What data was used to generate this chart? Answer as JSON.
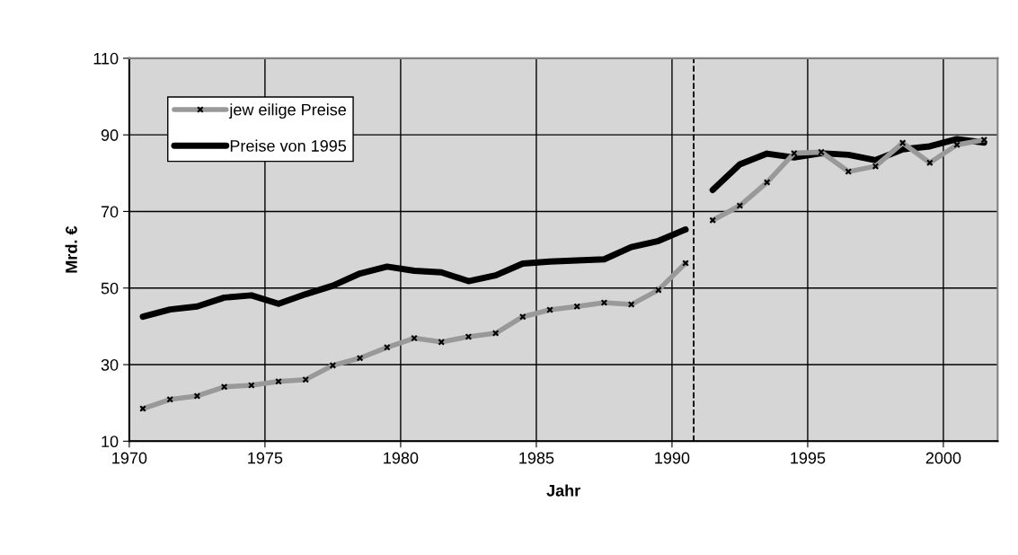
{
  "chart_data": {
    "type": "line",
    "xlabel": "Jahr",
    "ylabel": "Mrd. €",
    "xlim": [
      1970,
      2002
    ],
    "xticks": [
      1970,
      1975,
      1980,
      1985,
      1990,
      1995,
      2000
    ],
    "ylim": [
      10,
      110
    ],
    "yticks": [
      10,
      30,
      50,
      70,
      90,
      110
    ],
    "grid": true,
    "legend": "top left",
    "series": [
      {
        "name": "jew eilige Preise",
        "color": "#999999",
        "marker": "cross",
        "x": [
          1970.5,
          1971.5,
          1972.5,
          1973.5,
          1974.5,
          1975.5,
          1976.5,
          1977.5,
          1978.5,
          1979.5,
          1980.5,
          1981.5,
          1982.5,
          1983.5,
          1984.5,
          1985.5,
          1986.5,
          1987.5,
          1988.5,
          1989.5,
          1990.5,
          1991.0,
          1991.5,
          1992.5,
          1993.5,
          1994.5,
          1995.5,
          1996.5,
          1997.5,
          1998.5,
          1999.5,
          2000.5,
          2001.5
        ],
        "values": [
          18.5,
          20.9,
          21.8,
          24.2,
          24.6,
          25.6,
          26.1,
          29.8,
          31.7,
          34.5,
          36.9,
          35.9,
          37.3,
          38.2,
          42.5,
          44.3,
          45.2,
          46.2,
          45.7,
          49.5,
          56.5,
          null,
          67.7,
          71.5,
          77.6,
          85.2,
          85.5,
          80.4,
          81.8,
          87.9,
          82.7,
          87.4,
          88.7
        ]
      },
      {
        "name": "Preise von 1995",
        "color": "#000000",
        "marker": "none",
        "x": [
          1970.5,
          1971.5,
          1972.5,
          1973.5,
          1974.5,
          1975.5,
          1976.5,
          1977.5,
          1978.5,
          1979.5,
          1980.5,
          1981.5,
          1982.5,
          1983.5,
          1984.5,
          1985.5,
          1986.5,
          1987.5,
          1988.5,
          1989.5,
          1990.5,
          1991.0,
          1991.5,
          1992.5,
          1993.5,
          1994.5,
          1995.5,
          1996.5,
          1997.5,
          1998.5,
          1999.5,
          2000.5,
          2001.5
        ],
        "values": [
          42.5,
          44.4,
          45.2,
          47.5,
          48.1,
          45.9,
          48.4,
          50.6,
          53.8,
          55.6,
          54.5,
          54.1,
          51.8,
          53.3,
          56.4,
          56.9,
          57.2,
          57.5,
          60.7,
          62.3,
          65.3,
          null,
          75.6,
          82.3,
          85.1,
          84.1,
          85.2,
          84.8,
          83.4,
          86.2,
          87.0,
          88.9,
          88.0
        ]
      }
    ],
    "ref_lines": [
      {
        "axis": "x",
        "value": 1990.8,
        "color": "#000000",
        "line_style": "dashed"
      }
    ]
  }
}
